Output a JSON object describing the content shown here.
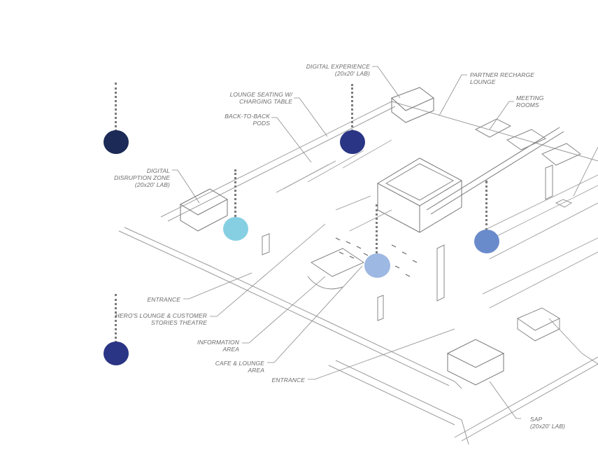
{
  "labels": {
    "digital_experience": [
      "DIGITAL EXPERIENCE",
      "(20x20' LAB)"
    ],
    "partner_recharge": [
      "PARTNER RECHARGE",
      "LOUNGE"
    ],
    "lounge_seating": [
      "LOUNGE SEATING W/",
      "CHARGING TABLE"
    ],
    "meeting_rooms": [
      "MEETING",
      "ROOMS"
    ],
    "back_to_back": [
      "BACK-TO-BACK",
      "PODS"
    ],
    "digital_disruption": [
      "DIGITAL",
      "DISRUPTION ZONE",
      "(20x20' LAB)"
    ],
    "entrance_left": [
      "ENTRANCE"
    ],
    "heros_lounge": [
      "HERO'S LOUNGE & CUSTOMER",
      "STORIES THEATRE"
    ],
    "information_area": [
      "INFORMATION",
      "AREA"
    ],
    "cafe_lounge": [
      "CAFE & LOUNGE",
      "AREA"
    ],
    "entrance_bottom": [
      "ENTRANCE"
    ],
    "sap": [
      "SAP",
      "(20x20' LAB)"
    ]
  },
  "colors": {
    "marker_navy_dark": "#1b2a57",
    "marker_navy": "#2a3585",
    "marker_blue_mid": "#6a8bcb",
    "marker_blue_light": "#9db8e2",
    "marker_cyan": "#86cfe3",
    "line": "#8a8a8a",
    "stem": "#7a7a7a"
  }
}
